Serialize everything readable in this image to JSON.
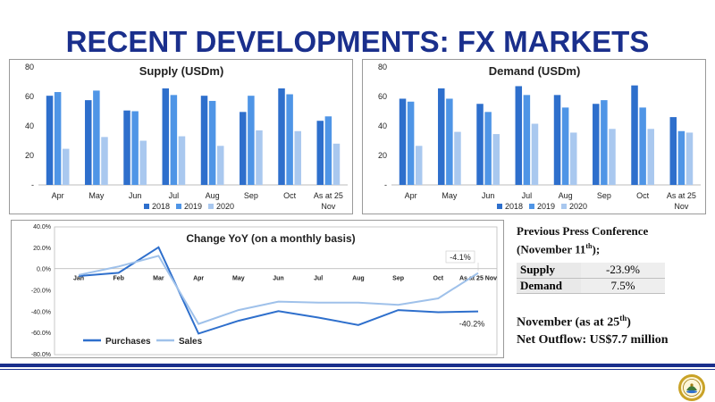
{
  "page_title": "RECENT DEVELOPMENTS: FX MARKETS",
  "colors": {
    "c2018": "#2e6fcc",
    "c2019": "#4f95e6",
    "c2020": "#a9c8ef",
    "purchases": "#2e6fcc",
    "sales": "#9fc1ea"
  },
  "chart_data": [
    {
      "type": "bar",
      "title": "Supply (USDm)",
      "categories": [
        "Apr",
        "May",
        "Jun",
        "Jul",
        "Aug",
        "Sep",
        "Oct",
        "As at 25 Nov"
      ],
      "category_lines": [
        [
          "Apr"
        ],
        [
          "May"
        ],
        [
          "Jun"
        ],
        [
          "Jul"
        ],
        [
          "Aug"
        ],
        [
          "Sep"
        ],
        [
          "Oct"
        ],
        [
          "As at 25",
          "Nov"
        ]
      ],
      "series": [
        {
          "name": "2018",
          "values": [
            60.5,
            57.5,
            50.5,
            65.5,
            60.5,
            49.5,
            65.5,
            43.5
          ]
        },
        {
          "name": "2019",
          "values": [
            63.0,
            64.0,
            50.0,
            61.0,
            57.0,
            60.5,
            61.5,
            46.5
          ]
        },
        {
          "name": "2020",
          "values": [
            24.5,
            32.5,
            30.0,
            33.0,
            26.5,
            37.0,
            36.5,
            28.0
          ]
        }
      ],
      "ylim": [
        0,
        80
      ],
      "yticks": [
        0,
        20,
        40,
        60,
        80
      ],
      "ytick_labels": [
        "-",
        "20",
        "40",
        "60",
        "80"
      ],
      "legend_position": "bottom",
      "grid": false
    },
    {
      "type": "bar",
      "title": "Demand (USDm)",
      "categories": [
        "Apr",
        "May",
        "Jun",
        "Jul",
        "Aug",
        "Sep",
        "Oct",
        "As at 25 Nov"
      ],
      "category_lines": [
        [
          "Apr"
        ],
        [
          "May"
        ],
        [
          "Jun"
        ],
        [
          "Jul"
        ],
        [
          "Aug"
        ],
        [
          "Sep"
        ],
        [
          "Oct"
        ],
        [
          "As at 25",
          "Nov"
        ]
      ],
      "series": [
        {
          "name": "2018",
          "values": [
            58.5,
            65.5,
            55.0,
            67.0,
            61.0,
            55.0,
            67.5,
            46.0
          ]
        },
        {
          "name": "2019",
          "values": [
            56.5,
            58.5,
            49.5,
            61.0,
            52.5,
            57.5,
            52.5,
            36.5
          ]
        },
        {
          "name": "2020",
          "values": [
            26.5,
            36.0,
            34.5,
            41.5,
            35.5,
            38.0,
            38.0,
            35.5
          ]
        }
      ],
      "ylim": [
        0,
        80
      ],
      "yticks": [
        0,
        20,
        40,
        60,
        80
      ],
      "ytick_labels": [
        "-",
        "20",
        "40",
        "60",
        "80"
      ],
      "legend_position": "bottom",
      "grid": false
    },
    {
      "type": "line",
      "title": "Change YoY (on a monthly basis)",
      "categories": [
        "Jan",
        "Feb",
        "Mar",
        "Apr",
        "May",
        "Jun",
        "Jul",
        "Aug",
        "Sep",
        "Oct",
        "As at 25 Nov"
      ],
      "series": [
        {
          "name": "Purchases",
          "values": [
            -7,
            -4,
            20,
            -61,
            -49,
            -40,
            -46,
            -53,
            -39,
            -41,
            -40.2
          ]
        },
        {
          "name": "Sales",
          "values": [
            -6,
            2,
            12,
            -52,
            -39,
            -31,
            -32,
            -32,
            -34,
            -28,
            -4.1
          ]
        }
      ],
      "ylim": [
        -80,
        40
      ],
      "yticks": [
        -80,
        -60,
        -40,
        -20,
        0,
        20,
        40
      ],
      "ytick_labels": [
        "-80.0%",
        "-60.0%",
        "-40.0%",
        "-20.0%",
        "0.0%",
        "20.0%",
        "40.0%"
      ],
      "annotations": [
        {
          "series": "Sales",
          "label": "-4.1%"
        },
        {
          "series": "Purchases",
          "label": "-40.2%"
        }
      ],
      "legend_position": "bottom-left",
      "grid": false
    }
  ],
  "press_conference": {
    "line1": "Previous Press Conference",
    "line2_pre": "(November 11",
    "line2_sup": "th",
    "line2_post": ");",
    "rows": [
      {
        "label": "Supply",
        "value": "-23.9%"
      },
      {
        "label": "Demand",
        "value": "7.5%"
      }
    ]
  },
  "november": {
    "line1_pre": "November (as at 25",
    "line1_sup": "th",
    "line1_post": ")",
    "line2": "Net Outflow: US$7.7 million"
  },
  "logo": {
    "icon": "central-bank-seal-icon"
  }
}
